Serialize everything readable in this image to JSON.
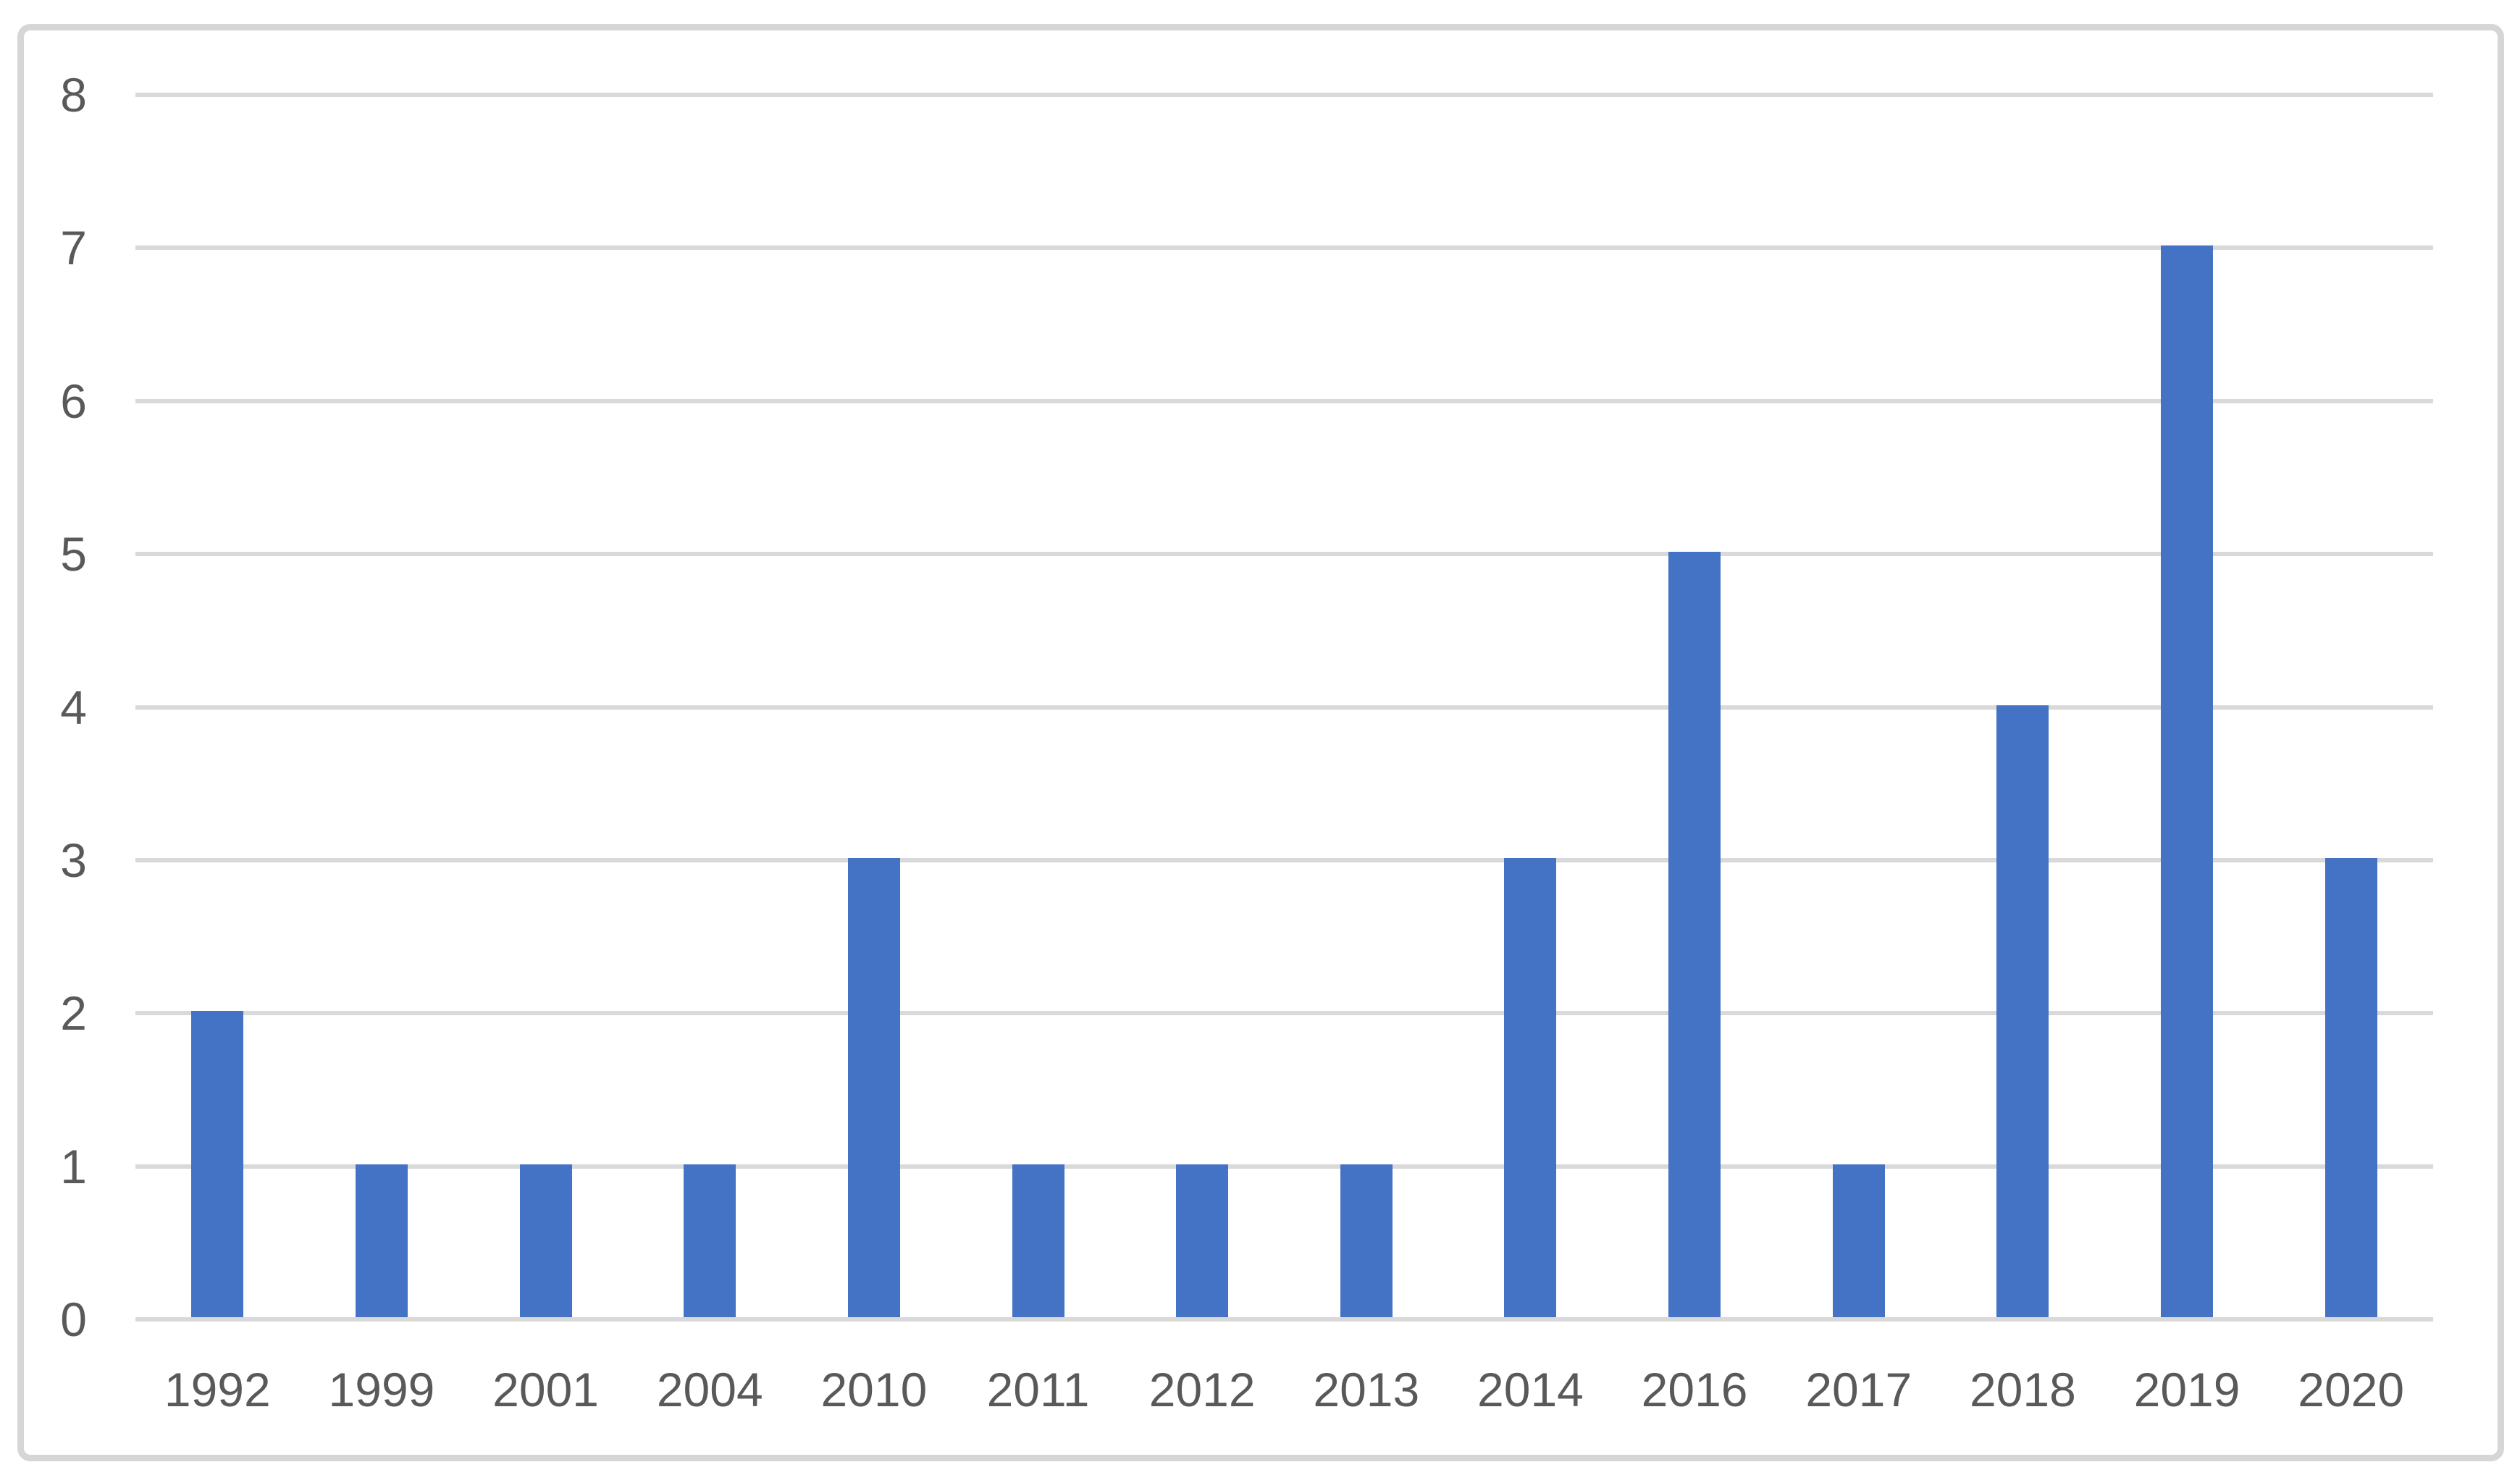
{
  "chart_data": {
    "type": "bar",
    "title": "",
    "xlabel": "",
    "ylabel": "",
    "categories": [
      "1992",
      "1999",
      "2001",
      "2004",
      "2010",
      "2011",
      "2012",
      "2013",
      "2014",
      "2016",
      "2017",
      "2018",
      "2019",
      "2020"
    ],
    "values": [
      2,
      1,
      1,
      1,
      3,
      1,
      1,
      1,
      3,
      5,
      1,
      4,
      7,
      3
    ],
    "ylim": [
      0,
      8
    ],
    "yticks": [
      0,
      1,
      2,
      3,
      4,
      5,
      6,
      7,
      8
    ],
    "grid": "horizontal-major",
    "legend": "none",
    "colors": {
      "bar": "#4472C4",
      "gridline": "#D9D9D9",
      "frame_border": "#D6D6D6",
      "tick_label": "#595959",
      "background": "#FFFFFF"
    }
  }
}
